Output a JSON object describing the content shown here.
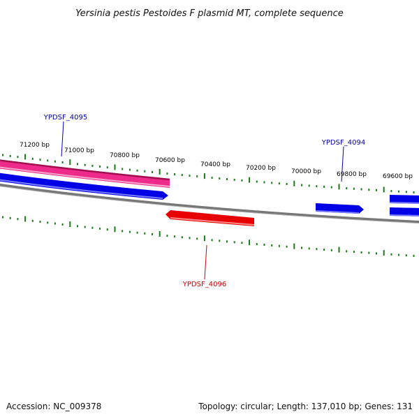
{
  "title": "Yersinia pestis Pestoides F plasmid MT, complete sequence",
  "accession": "Accession: NC_009378",
  "summary": "Topology: circular; Length: 137,010 bp; Genes: 131",
  "colors": {
    "backbone": "#888888",
    "ticks": "#1a7a1a",
    "forward_gene": "#0000e6",
    "reverse_gene": "#e60000",
    "feature_pink": "#ee2a8a",
    "label_blue": "#0000aa",
    "label_red": "#cc0000"
  },
  "ticks": [
    {
      "label": "71200 bp"
    },
    {
      "label": "71000 bp"
    },
    {
      "label": "70800 bp"
    },
    {
      "label": "70600 bp"
    },
    {
      "label": "70400 bp"
    },
    {
      "label": "70200 bp"
    },
    {
      "label": "70000 bp"
    },
    {
      "label": "69800 bp"
    },
    {
      "label": "69600 bp"
    }
  ],
  "genes": [
    {
      "name": "YPDSF_4095",
      "strand": "forward"
    },
    {
      "name": "YPDSF_4094",
      "strand": "forward"
    },
    {
      "name": "YPDSF_4096",
      "strand": "reverse"
    }
  ]
}
